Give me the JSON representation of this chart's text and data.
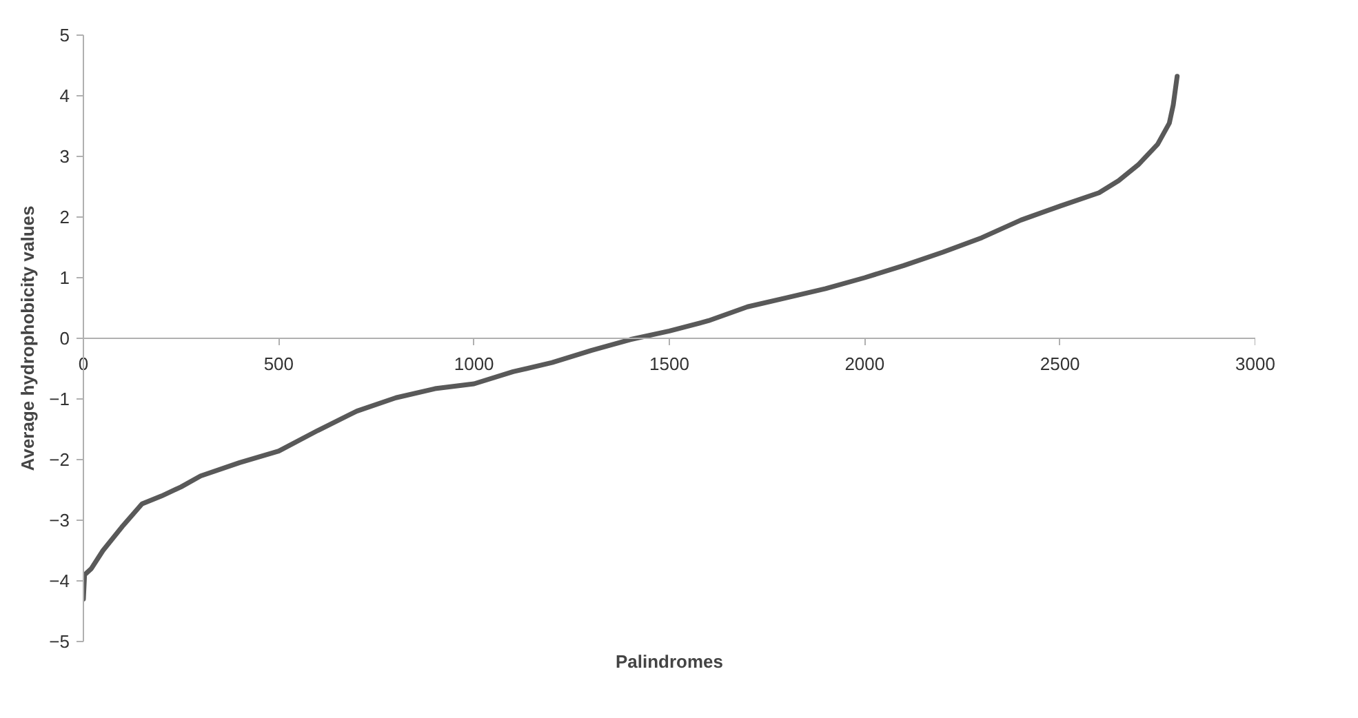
{
  "chart_data": {
    "type": "line",
    "xlabel": "Palindromes",
    "ylabel": "Average hydrophobicity values",
    "series": [
      {
        "color": "#595959",
        "x": [
          0,
          3,
          20,
          50,
          100,
          150,
          200,
          250,
          300,
          400,
          500,
          600,
          700,
          800,
          900,
          1000,
          1100,
          1200,
          1300,
          1400,
          1500,
          1600,
          1700,
          1800,
          1900,
          2000,
          2100,
          2200,
          2300,
          2400,
          2500,
          2600,
          2650,
          2700,
          2750,
          2780,
          2790,
          2800
        ],
        "values": [
          -4.3,
          -3.9,
          -3.8,
          -3.5,
          -3.1,
          -2.73,
          -2.6,
          -2.45,
          -2.27,
          -2.05,
          -1.86,
          -1.52,
          -1.2,
          -0.98,
          -0.83,
          -0.75,
          -0.55,
          -0.4,
          -0.2,
          -0.02,
          0.12,
          0.29,
          0.52,
          0.67,
          0.82,
          1.0,
          1.2,
          1.42,
          1.66,
          1.95,
          2.18,
          2.4,
          2.6,
          2.86,
          3.2,
          3.55,
          3.85,
          4.32
        ]
      }
    ],
    "xlim": [
      0,
      3000
    ],
    "ylim": [
      -5,
      5
    ],
    "xticks": [
      0,
      500,
      1000,
      1500,
      2000,
      2500,
      3000
    ],
    "yticks": [
      -5,
      -4,
      -3,
      -2,
      -1,
      0,
      1,
      2,
      3,
      4,
      5
    ],
    "grid": false,
    "marker": "none",
    "line_style": "solid"
  }
}
